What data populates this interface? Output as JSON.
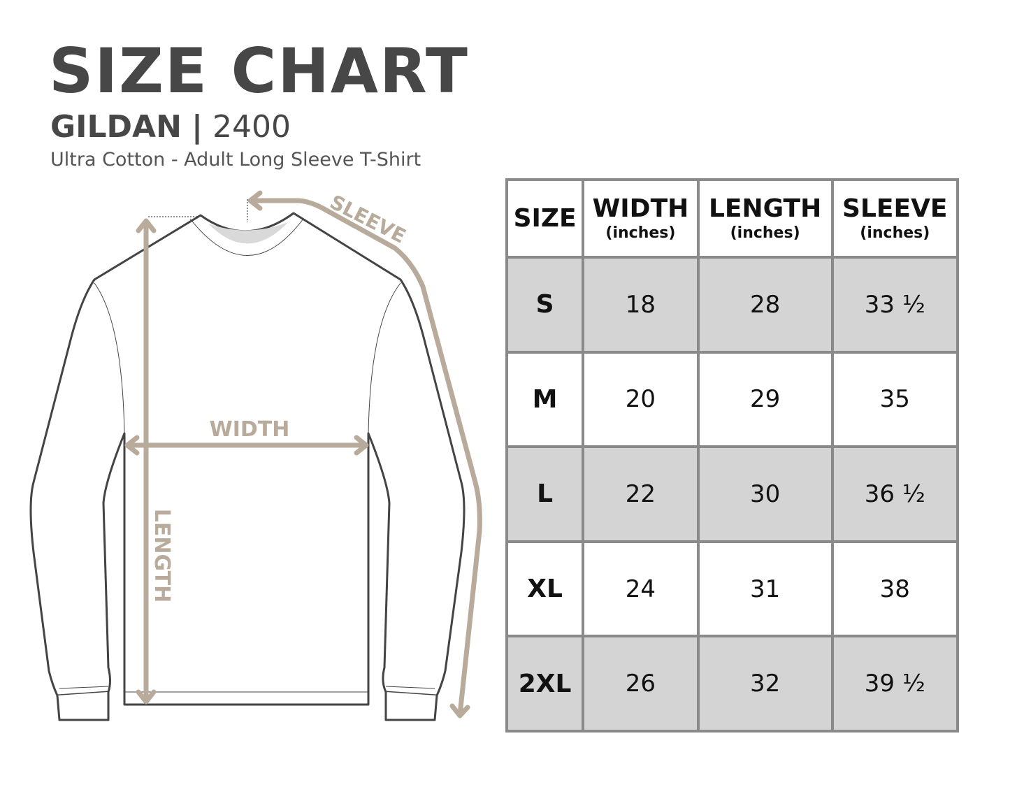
{
  "header": {
    "title": "SIZE CHART",
    "brand": "GILDAN",
    "separator": "|",
    "model": "2400",
    "subtitle": "Ultra Cotton - Adult Long Sleeve T-Shirt"
  },
  "diagram": {
    "labels": {
      "width": "WIDTH",
      "length": "LENGTH",
      "sleeve": "SLEEVE"
    },
    "colors": {
      "arrow": "#b8ab9b",
      "outline": "#444444",
      "neck": "#d9d9d9"
    }
  },
  "table": {
    "columns": [
      {
        "label": "SIZE",
        "unit": ""
      },
      {
        "label": "WIDTH",
        "unit": "(inches)"
      },
      {
        "label": "LENGTH",
        "unit": "(inches)"
      },
      {
        "label": "SLEEVE",
        "unit": "(inches)"
      }
    ],
    "rows": [
      [
        "S",
        "18",
        "28",
        "33 ½"
      ],
      [
        "M",
        "20",
        "29",
        "35"
      ],
      [
        "L",
        "22",
        "30",
        "36 ½"
      ],
      [
        "XL",
        "24",
        "31",
        "38"
      ],
      [
        "2XL",
        "26",
        "32",
        "39 ½"
      ]
    ],
    "colors": {
      "stripe": "#d4d4d4",
      "border": "#8a8a8a"
    }
  }
}
